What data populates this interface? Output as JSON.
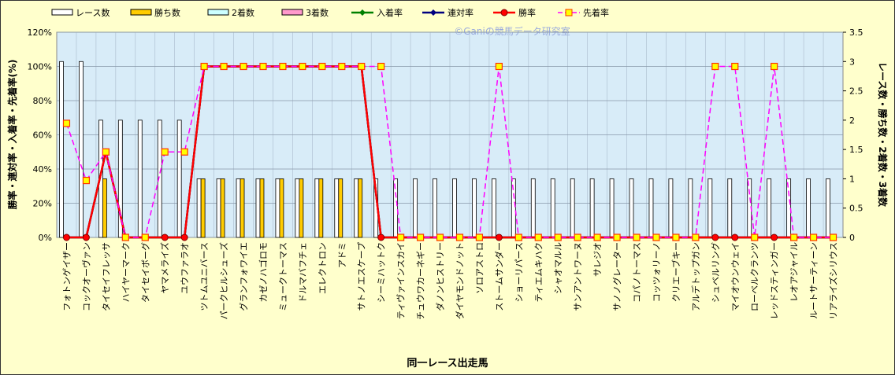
{
  "chart_data": {
    "type": "bar_line",
    "watermark": "©Ganiの競馬データ研究室",
    "x_label": "同一レース出走馬",
    "y_label": "勝率・連対率・入着率・先着率(%)",
    "y2_label": "レース数・勝ち数・2着数・3着数",
    "categories": [
      "フォトンゲイザー",
      "コックオーヴァン",
      "タイセイフレッサ",
      "ハイヤーマーク",
      "タイセイボーグ",
      "ヤマメライズ",
      "ユウファラオ",
      "ツトムユニバース",
      "パークヒルシューズ",
      "グランフォワイエ",
      "カゼノハゴロモ",
      "ミュークトーマス",
      "ドルマバフチェ",
      "エレクトロン",
      "アドミ",
      "サトノエスケープ",
      "シーミハットク",
      "ティヴァインスカイ",
      "チュウワカーネギー",
      "ダノンヒストリー",
      "ダイヤモンドノット",
      "ソロアストロ",
      "ストームサンダー",
      "ショーリパース",
      "ティエムキハク",
      "シャオマルル",
      "サンアントワーヌ",
      "サレジオ",
      "サノノグレーター",
      "コパノトーマス",
      "コッツォリーノ",
      "クリエーブキー",
      "アルデトップガン",
      "シュベルリング",
      "マイオウンウェイ",
      "ローベルクランツ",
      "レッドスティンガー",
      "レオアジャイル",
      "ルートサーティーン",
      "リアライズシリウス"
    ],
    "series": [
      {
        "name": "レース数",
        "kind": "bar",
        "axis": "y2",
        "color": "#ffffff",
        "values": [
          3,
          3,
          2,
          2,
          2,
          2,
          2,
          1,
          1,
          1,
          1,
          1,
          1,
          1,
          1,
          1,
          1,
          1,
          1,
          1,
          1,
          1,
          1,
          1,
          1,
          1,
          1,
          1,
          1,
          1,
          1,
          1,
          1,
          1,
          1,
          1,
          1,
          1,
          1,
          1
        ]
      },
      {
        "name": "勝ち数",
        "kind": "bar",
        "axis": "y2",
        "color": "#ffcc00",
        "values": [
          0,
          0,
          1,
          0,
          0,
          0,
          0,
          1,
          1,
          1,
          1,
          1,
          1,
          1,
          1,
          1,
          0,
          0,
          0,
          0,
          0,
          0,
          0,
          0,
          0,
          0,
          0,
          0,
          0,
          0,
          0,
          0,
          0,
          0,
          0,
          0,
          0,
          0,
          0,
          0
        ]
      },
      {
        "name": "2着数",
        "kind": "bar",
        "axis": "y2",
        "color": "#ccffff",
        "values": [
          0,
          0,
          0,
          0,
          0,
          0,
          0,
          0,
          0,
          0,
          0,
          0,
          0,
          0,
          0,
          0,
          0,
          0,
          0,
          0,
          0,
          0,
          0,
          0,
          0,
          0,
          0,
          0,
          0,
          0,
          0,
          0,
          0,
          0,
          0,
          0,
          0,
          0,
          0,
          0
        ]
      },
      {
        "name": "3着数",
        "kind": "bar",
        "axis": "y2",
        "color": "#ff99cc",
        "values": [
          0,
          0,
          0,
          0,
          0,
          0,
          0,
          0,
          0,
          0,
          0,
          0,
          0,
          0,
          0,
          0,
          0,
          0,
          0,
          0,
          0,
          0,
          0,
          0,
          0,
          0,
          0,
          0,
          0,
          0,
          0,
          0,
          0,
          0,
          0,
          0,
          0,
          0,
          0,
          0
        ]
      },
      {
        "name": "入着率",
        "kind": "line",
        "marker": "diamond",
        "color": "#008000",
        "values": [
          0,
          0,
          50,
          0,
          0,
          0,
          0,
          100,
          100,
          100,
          100,
          100,
          100,
          100,
          100,
          100,
          0,
          0,
          0,
          0,
          0,
          0,
          0,
          0,
          0,
          0,
          0,
          0,
          0,
          0,
          0,
          0,
          0,
          0,
          0,
          0,
          0,
          0,
          0,
          0
        ]
      },
      {
        "name": "連対率",
        "kind": "line",
        "marker": "diamond",
        "color": "#000080",
        "values": [
          0,
          0,
          50,
          0,
          0,
          0,
          0,
          100,
          100,
          100,
          100,
          100,
          100,
          100,
          100,
          100,
          0,
          0,
          0,
          0,
          0,
          0,
          0,
          0,
          0,
          0,
          0,
          0,
          0,
          0,
          0,
          0,
          0,
          0,
          0,
          0,
          0,
          0,
          0,
          0
        ]
      },
      {
        "name": "勝率",
        "kind": "line",
        "marker": "circle",
        "color": "#ff0000",
        "values": [
          0,
          0,
          50,
          0,
          0,
          0,
          0,
          100,
          100,
          100,
          100,
          100,
          100,
          100,
          100,
          100,
          0,
          0,
          0,
          0,
          0,
          0,
          0,
          0,
          0,
          0,
          0,
          0,
          0,
          0,
          0,
          0,
          0,
          0,
          0,
          0,
          0,
          0,
          0,
          0
        ]
      },
      {
        "name": "先着率",
        "kind": "line",
        "marker": "square",
        "dashed": true,
        "color": "#ff00ff",
        "values": [
          66.7,
          33.3,
          50,
          0,
          0,
          50,
          50,
          100,
          100,
          100,
          100,
          100,
          100,
          100,
          100,
          100,
          100,
          0,
          0,
          0,
          0,
          0,
          100,
          0,
          0,
          0,
          0,
          0,
          0,
          0,
          0,
          0,
          0,
          100,
          100,
          0,
          100,
          0,
          0,
          0
        ]
      }
    ],
    "ylim": [
      0,
      120
    ],
    "yticks": [
      {
        "value": 0,
        "label": "0%"
      },
      {
        "value": 20,
        "label": "20%"
      },
      {
        "value": 40,
        "label": "40%"
      },
      {
        "value": 60,
        "label": "60%"
      },
      {
        "value": 80,
        "label": "80%"
      },
      {
        "value": 100,
        "label": "100%"
      },
      {
        "value": 120,
        "label": "120%"
      }
    ],
    "y2lim": [
      0,
      3.5
    ],
    "y2ticks": [
      0,
      0.5,
      1,
      1.5,
      2,
      2.5,
      3,
      3.5
    ],
    "grid": true
  }
}
